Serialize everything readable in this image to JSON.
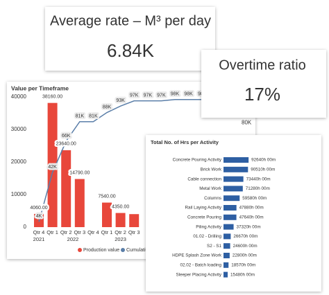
{
  "kpis": [
    {
      "title": "Average rate – M³ per day",
      "value": "6.84K",
      "color": "#5c9e36"
    },
    {
      "title": "Overtime ratio",
      "value": "17%",
      "color": "#4a78b3"
    }
  ],
  "chart_data": [
    {
      "type": "combo",
      "title": "Value per Timeframe",
      "categories": [
        "Qtr 4",
        "Qtr 1",
        "Qtr 2",
        "Qtr 3",
        "Qtr 4",
        "Qtr 1",
        "Qtr 2",
        "Qtr 3",
        null,
        null,
        null,
        null,
        null
      ],
      "category_groups": [
        {
          "label": "2021",
          "count": 1
        },
        {
          "label": "2022",
          "count": 4
        },
        {
          "label": "2023",
          "count": 3
        }
      ],
      "series": [
        {
          "name": "Production value",
          "type": "bar",
          "color": "#e8473b",
          "values": [
            4060,
            38160,
            23640,
            14790,
            null,
            7540,
            4350,
            4000,
            null,
            null,
            null,
            null,
            null
          ],
          "value_labels": [
            "4060.00",
            "38160.00",
            "23640.00",
            "14790.00",
            null,
            "7540.00",
            "4350.00",
            null,
            null,
            null,
            null,
            null,
            null
          ]
        },
        {
          "name": "Cumulative",
          "type": "line",
          "axis": "y2",
          "color": "#5a7ea8",
          "values": [
            4060,
            42000,
            66000,
            81000,
            81000,
            88000,
            93000,
            97000,
            97000,
            97000,
            98000,
            98000,
            98000
          ],
          "value_labels": [
            "4K",
            "42K",
            "66K",
            "81K",
            "81K",
            "88K",
            "93K",
            "97K",
            "97K",
            "97K",
            "98K",
            "98K",
            "98K"
          ]
        }
      ],
      "ylim": [
        0,
        40000
      ],
      "yticks": [
        0,
        10000,
        20000,
        30000,
        40000
      ],
      "y2lim": [
        0,
        100000
      ],
      "y2ticks": [
        {
          "value": 80000,
          "label": "80K"
        }
      ]
    },
    {
      "type": "hbar",
      "title": "Total No. of Hrs per Activity",
      "color": "#2e5fa3",
      "categories": [
        "Concrete Pouring Activity",
        "Brick Work",
        "Cable connection",
        "Metal Work",
        "Columns",
        "Rail Laying Activity",
        "Concrete Pouring",
        "Piling Activity",
        "01.02 - Drilling",
        "S2 - S1",
        "HDPE Splash Zone Work",
        "02.02 - Batch loading",
        "Sleeper Placing Activity"
      ],
      "values": [
        92640,
        90510,
        73440,
        71280,
        59580,
        47880,
        47640,
        37320,
        26670,
        24600,
        22800,
        18570,
        15480
      ],
      "value_labels": [
        "92640h 00m",
        "90510h 00m",
        "73440h 00m",
        "71280h 00m",
        "59580h 00m",
        "47880h 00m",
        "47640h 00m",
        "37320h 00m",
        "26670h 00m",
        "24600h 00m",
        "22800h 00m",
        "18570h 00m",
        "15480h 00m"
      ],
      "xlim": [
        0,
        100000
      ]
    }
  ]
}
